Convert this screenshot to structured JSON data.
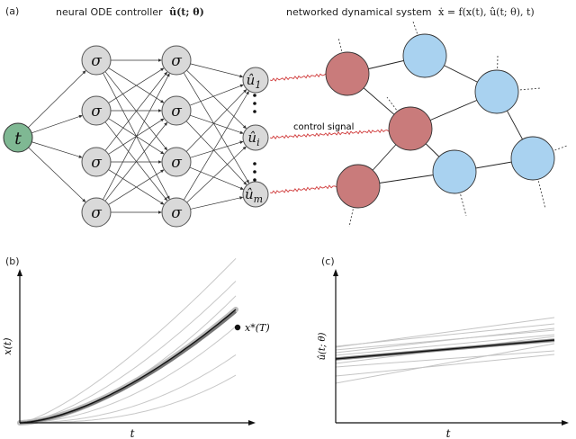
{
  "panel_a": {
    "tag": "(a)",
    "controller_title": "neural ODE controller",
    "controller_math": "û(t; θ)",
    "system_title": "networked dynamical system",
    "system_math": "ẋ = f(x(t), û(t; θ), t)",
    "input_node": "t",
    "activation": "σ",
    "outputs": [
      {
        "base": "û",
        "sub": "1"
      },
      {
        "base": "û",
        "sub": "i"
      },
      {
        "base": "û",
        "sub": "m"
      }
    ],
    "control_signal_label": "control signal",
    "colors": {
      "input_node": "#7fb893",
      "hidden_node": "#d9d9d9",
      "controlled_node": "#c97b7b",
      "free_node": "#a9d2f0",
      "signal": "#d03a3a"
    }
  },
  "panel_b": {
    "tag": "(b)",
    "ylabel": "x(t)",
    "xlabel": "t",
    "target_label": "x*(T)"
  },
  "panel_c": {
    "tag": "(c)",
    "ylabel": "û(t; θ)",
    "xlabel": "t"
  }
}
